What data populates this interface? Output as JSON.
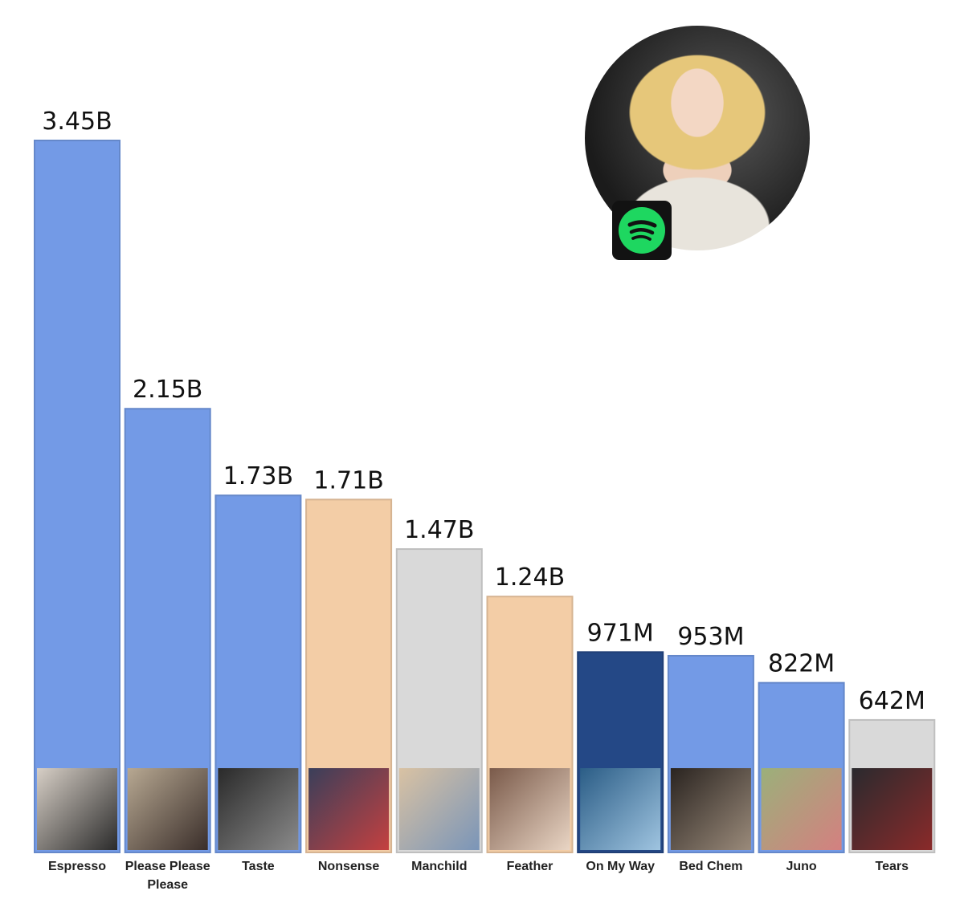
{
  "chart_data": {
    "type": "bar",
    "categories": [
      "Espresso",
      "Please Please Please",
      "Taste",
      "Nonsense",
      "Manchild",
      "Feather",
      "On My Way",
      "Bed Chem",
      "Juno",
      "Tears"
    ],
    "values": [
      3.45,
      2.15,
      1.73,
      1.71,
      1.47,
      1.24,
      0.971,
      0.953,
      0.822,
      0.642
    ],
    "value_unit": "billion streams",
    "data_labels": [
      "3.45B",
      "2.15B",
      "1.73B",
      "1.71B",
      "1.47B",
      "1.24B",
      "971M",
      "953M",
      "822M",
      "642M"
    ],
    "bar_colors": [
      "#739ae6",
      "#739ae6",
      "#739ae6",
      "#f3cda6",
      "#d9d9d9",
      "#f3cda6",
      "#244886",
      "#739ae6",
      "#739ae6",
      "#d9d9d9"
    ],
    "ylim": [
      0,
      3.45
    ],
    "grid": false,
    "legend": "none"
  },
  "images": {
    "artist_photo": "artist-avatar",
    "platform_icon": "spotify-icon",
    "cover_art_per_bar": true
  }
}
